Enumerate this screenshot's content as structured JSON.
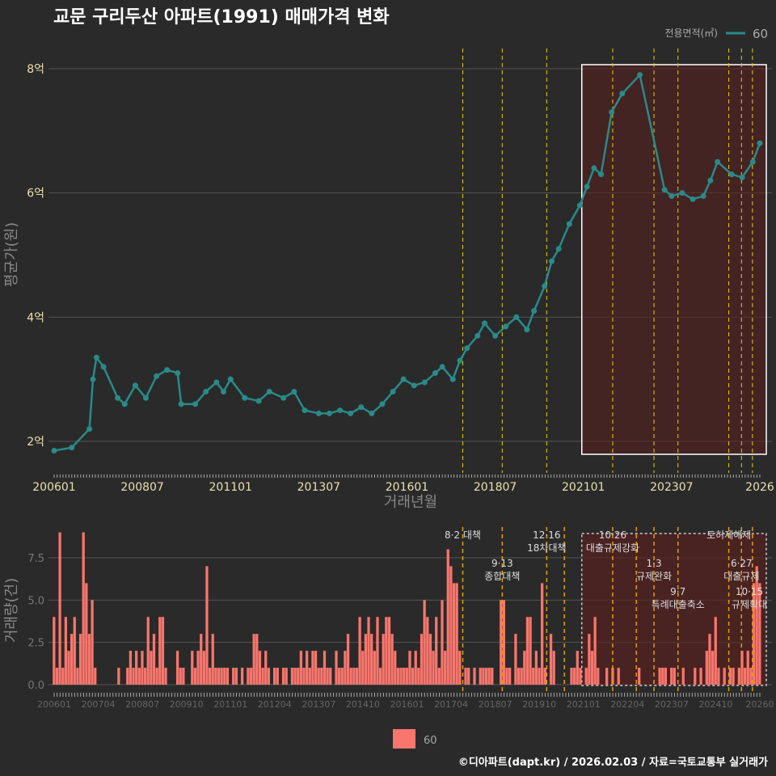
{
  "title": "교문 구리두산 아파트(1991) 매매가격 변화",
  "footer": "©디아파트(dapt.kr) / 2026.02.03 / 자료=국토교통부 실거래가",
  "colors": {
    "line": "#2a8a8a",
    "bar": "#f8766d",
    "policy": "#e6d000",
    "highlight": "#5a1e1e",
    "grid": "#555555"
  },
  "chart_data": [
    {
      "type": "line",
      "title": "교문 구리두산 아파트(1991) 매매가격 변화",
      "xlabel": "거래년월",
      "ylabel": "평균가(원)",
      "xlim": [
        2006.0,
        2026.0
      ],
      "ylim": [
        1.8,
        8.1
      ],
      "xticks": [
        {
          "v": 2006.0,
          "label": "200601"
        },
        {
          "v": 2008.5,
          "label": "200807"
        },
        {
          "v": 2011.0,
          "label": "201101"
        },
        {
          "v": 2013.5,
          "label": "201307"
        },
        {
          "v": 2016.0,
          "label": "201601"
        },
        {
          "v": 2018.5,
          "label": "201807"
        },
        {
          "v": 2021.0,
          "label": "202101"
        },
        {
          "v": 2023.5,
          "label": "202307"
        },
        {
          "v": 2026.0,
          "label": "2026"
        }
      ],
      "yticks": [
        {
          "v": 2,
          "label": "2억"
        },
        {
          "v": 4,
          "label": "4억"
        },
        {
          "v": 6,
          "label": "6억"
        },
        {
          "v": 8,
          "label": "8억"
        }
      ],
      "legend": {
        "title": "전용면적(㎡)",
        "label": "60",
        "position": "top-right"
      },
      "highlight_range": [
        2021.0,
        2026.0
      ],
      "series": [
        {
          "name": "60",
          "x": [
            2006.0,
            2006.5,
            2007.0,
            2007.1,
            2007.2,
            2007.4,
            2007.8,
            2008.0,
            2008.3,
            2008.6,
            2008.9,
            2009.2,
            2009.5,
            2009.6,
            2010.0,
            2010.3,
            2010.6,
            2010.8,
            2011.0,
            2011.4,
            2011.8,
            2012.1,
            2012.5,
            2012.8,
            2013.1,
            2013.5,
            2013.8,
            2014.1,
            2014.4,
            2014.7,
            2015.0,
            2015.3,
            2015.6,
            2015.9,
            2016.2,
            2016.5,
            2016.8,
            2017.0,
            2017.3,
            2017.5,
            2017.7,
            2018.0,
            2018.2,
            2018.5,
            2018.8,
            2019.1,
            2019.4,
            2019.6,
            2019.9,
            2020.1,
            2020.3,
            2020.6,
            2020.9,
            2021.1,
            2021.3,
            2021.5,
            2021.8,
            2022.1,
            2022.6,
            2023.3,
            2023.5,
            2023.8,
            2024.1,
            2024.4,
            2024.6,
            2024.8,
            2025.2,
            2025.5,
            2025.8,
            2026.0
          ],
          "y": [
            1.85,
            1.9,
            2.2,
            3.0,
            3.35,
            3.2,
            2.7,
            2.6,
            2.9,
            2.7,
            3.05,
            3.15,
            3.1,
            2.6,
            2.6,
            2.8,
            2.95,
            2.8,
            3.0,
            2.7,
            2.65,
            2.8,
            2.7,
            2.8,
            2.5,
            2.45,
            2.45,
            2.5,
            2.45,
            2.55,
            2.45,
            2.6,
            2.8,
            3.0,
            2.9,
            2.95,
            3.1,
            3.2,
            3.0,
            3.3,
            3.5,
            3.7,
            3.9,
            3.7,
            3.85,
            4.0,
            3.8,
            4.1,
            4.5,
            4.9,
            5.1,
            5.5,
            5.8,
            6.1,
            6.4,
            6.3,
            7.3,
            7.6,
            7.9,
            6.05,
            5.95,
            6.0,
            5.9,
            5.95,
            6.2,
            6.5,
            6.3,
            6.25,
            6.5,
            6.8
          ]
        }
      ]
    },
    {
      "type": "bar",
      "xlabel": "",
      "ylabel": "거래량(건)",
      "xlim": [
        2006.0,
        2026.0
      ],
      "ylim": [
        0,
        9
      ],
      "xticks": [
        {
          "v": 2006.0,
          "label": "200601"
        },
        {
          "v": 2007.25,
          "label": "200704"
        },
        {
          "v": 2008.5,
          "label": "200807"
        },
        {
          "v": 2009.75,
          "label": "200910"
        },
        {
          "v": 2011.0,
          "label": "201101"
        },
        {
          "v": 2012.25,
          "label": "201204"
        },
        {
          "v": 2013.5,
          "label": "201307"
        },
        {
          "v": 2014.75,
          "label": "201410"
        },
        {
          "v": 2016.0,
          "label": "201601"
        },
        {
          "v": 2017.25,
          "label": "201704"
        },
        {
          "v": 2018.5,
          "label": "201807"
        },
        {
          "v": 2019.75,
          "label": "201910"
        },
        {
          "v": 2021.0,
          "label": "202101"
        },
        {
          "v": 2022.25,
          "label": "202204"
        },
        {
          "v": 2023.5,
          "label": "202307"
        },
        {
          "v": 2024.75,
          "label": "202410"
        },
        {
          "v": 2026.0,
          "label": "20260"
        }
      ],
      "yticks": [
        {
          "v": 0,
          "label": "0.0"
        },
        {
          "v": 2.5,
          "label": "2.5"
        },
        {
          "v": 5,
          "label": "5.0"
        },
        {
          "v": 7.5,
          "label": "7.5"
        }
      ],
      "legend": {
        "label": "60",
        "position": "bottom"
      },
      "start": 2006.0,
      "values": [
        4,
        1,
        9,
        1,
        4,
        2,
        3,
        4,
        1,
        3,
        9,
        6,
        3,
        5,
        1,
        0,
        0,
        0,
        0,
        0,
        0,
        0,
        1,
        0,
        0,
        1,
        2,
        1,
        2,
        1,
        2,
        1,
        4,
        2,
        3,
        1,
        4,
        4,
        1,
        0,
        0,
        0,
        2,
        1,
        1,
        0,
        0,
        2,
        1,
        2,
        3,
        2,
        7,
        1,
        3,
        1,
        1,
        1,
        1,
        1,
        0,
        1,
        1,
        0,
        1,
        0,
        1,
        1,
        3,
        3,
        2,
        1,
        2,
        1,
        0,
        1,
        1,
        0,
        1,
        1,
        0,
        1,
        1,
        1,
        2,
        1,
        2,
        1,
        2,
        2,
        1,
        1,
        2,
        1,
        1,
        0,
        2,
        1,
        1,
        2,
        3,
        1,
        1,
        1,
        4,
        2,
        3,
        4,
        3,
        2,
        4,
        1,
        3,
        4,
        4,
        3,
        2,
        1,
        1,
        1,
        1,
        2,
        1,
        2,
        1,
        3,
        5,
        4,
        3,
        2,
        4,
        1,
        5,
        2,
        8,
        7,
        6,
        6,
        2,
        0,
        1,
        1,
        0,
        1,
        0,
        1,
        1,
        1,
        1,
        1,
        0,
        0,
        5,
        5,
        1,
        1,
        0,
        3,
        1,
        1,
        2,
        4,
        4,
        1,
        2,
        1,
        6,
        1,
        0,
        3,
        2,
        0,
        0,
        0,
        0,
        0,
        1,
        1,
        2,
        1,
        0,
        1,
        3,
        2,
        4,
        1,
        0,
        0,
        1,
        0,
        1,
        0,
        1,
        0,
        0,
        0,
        0,
        0,
        0,
        1,
        0,
        0,
        0,
        0,
        0,
        0,
        1,
        1,
        1,
        0,
        1,
        1,
        0,
        0,
        1,
        0,
        0,
        0,
        1,
        0,
        1,
        0,
        2,
        3,
        2,
        4,
        1,
        0,
        1,
        0,
        1,
        1,
        0,
        1,
        2,
        1,
        2,
        1,
        6,
        7,
        6
      ],
      "policies": [
        {
          "x": 2017.58,
          "date": "8·2 대책",
          "name": "",
          "row": 1
        },
        {
          "x": 2018.7,
          "date": "9·13",
          "name": "종합대책",
          "row": 0
        },
        {
          "x": 2019.96,
          "date": "12·16",
          "name": "18차대책",
          "row": 0
        },
        {
          "x": 2020.46,
          "date": "",
          "name": "",
          "row": 0
        },
        {
          "x": 2021.83,
          "date": "10·26",
          "name": "대출규제강화",
          "row": 0
        },
        {
          "x": 2022.5,
          "date": "",
          "name": "",
          "row": 0
        },
        {
          "x": 2023.0,
          "date": "1·3",
          "name": "규제완화",
          "row": 0
        },
        {
          "x": 2023.68,
          "date": "9·7",
          "name": "특례대출축소",
          "row": 1
        },
        {
          "x": 2025.12,
          "date": "",
          "name": "토허제해제",
          "row": 1
        },
        {
          "x": 2025.48,
          "date": "6·27",
          "name": "대출규제",
          "row": 0
        },
        {
          "x": 2025.79,
          "date": "10·15",
          "name": "규제확대",
          "row": 0
        }
      ]
    }
  ]
}
